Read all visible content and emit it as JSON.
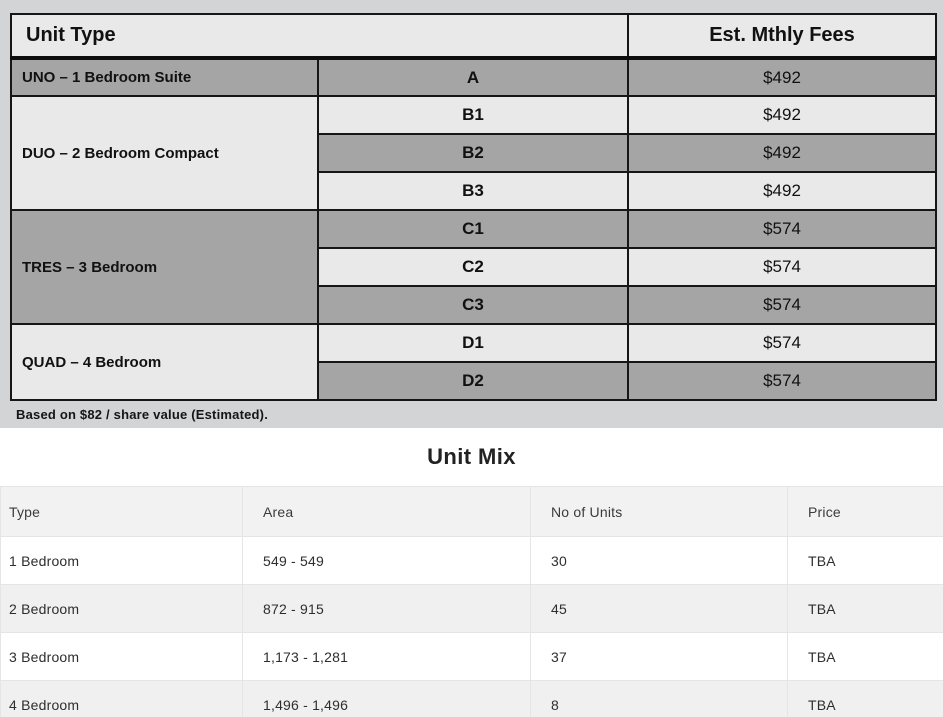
{
  "colors": {
    "page_top_background": "#d3d4d6",
    "cell_dark_gray": "#a5a5a5",
    "cell_light_gray": "#e9e9e9",
    "fees_table_border": "#161616",
    "mix_header_background": "#f2f2f3",
    "mix_alt_row_background": "#f0f0f1",
    "mix_border": "#e5e5e5"
  },
  "fees_table": {
    "header": {
      "unit_type": "Unit Type",
      "fees": "Est. Mthly Fees"
    },
    "groups": [
      {
        "label": "UNO – 1 Bedroom Suite",
        "shade": "dark",
        "plans": [
          {
            "code": "A",
            "fee": "$492",
            "shade": "dark"
          }
        ]
      },
      {
        "label": "DUO – 2 Bedroom Compact",
        "shade": "light",
        "plans": [
          {
            "code": "B1",
            "fee": "$492",
            "shade": "light"
          },
          {
            "code": "B2",
            "fee": "$492",
            "shade": "dark"
          },
          {
            "code": "B3",
            "fee": "$492",
            "shade": "light"
          }
        ]
      },
      {
        "label": "TRES – 3 Bedroom",
        "shade": "dark",
        "plans": [
          {
            "code": "C1",
            "fee": "$574",
            "shade": "dark"
          },
          {
            "code": "C2",
            "fee": "$574",
            "shade": "light"
          },
          {
            "code": "C3",
            "fee": "$574",
            "shade": "dark"
          }
        ]
      },
      {
        "label": "QUAD – 4 Bedroom",
        "shade": "light",
        "plans": [
          {
            "code": "D1",
            "fee": "$574",
            "shade": "light"
          },
          {
            "code": "D2",
            "fee": "$574",
            "shade": "dark"
          }
        ]
      }
    ],
    "footnote": "Based on $82 / share value (Estimated)."
  },
  "unit_mix": {
    "title": "Unit Mix",
    "columns": [
      "Type",
      "Area",
      "No of Units",
      "Price"
    ],
    "rows": [
      {
        "type": "1 Bedroom",
        "area": "549 - 549",
        "units": "30",
        "price": "TBA"
      },
      {
        "type": "2 Bedroom",
        "area": "872 - 915",
        "units": "45",
        "price": "TBA"
      },
      {
        "type": "3 Bedroom",
        "area": "1,173 - 1,281",
        "units": "37",
        "price": "TBA"
      },
      {
        "type": "4 Bedroom",
        "area": "1,496 - 1,496",
        "units": "8",
        "price": "TBA"
      }
    ]
  }
}
